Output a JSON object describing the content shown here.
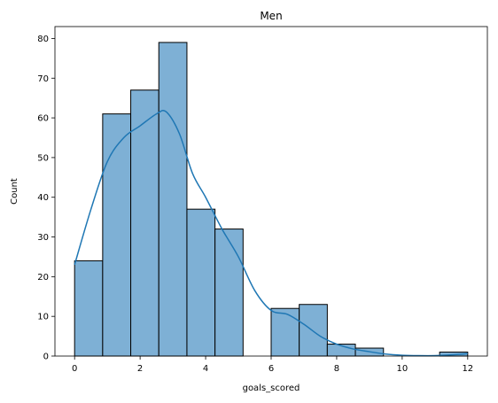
{
  "chart_data": {
    "type": "bar",
    "subtype": "histogram",
    "title": "Men",
    "xlabel": "goals_scored",
    "ylabel": "Count",
    "xlim": [
      -0.6,
      12.6
    ],
    "ylim": [
      0,
      83
    ],
    "xticks": [
      0,
      2,
      4,
      6,
      8,
      10,
      12
    ],
    "yticks": [
      0,
      10,
      20,
      30,
      40,
      50,
      60,
      70,
      80
    ],
    "bins": [
      {
        "start": 0.0,
        "end": 0.857,
        "count": 24
      },
      {
        "start": 0.857,
        "end": 1.714,
        "count": 61
      },
      {
        "start": 1.714,
        "end": 2.571,
        "count": 67
      },
      {
        "start": 2.571,
        "end": 3.429,
        "count": 79
      },
      {
        "start": 3.429,
        "end": 4.286,
        "count": 37
      },
      {
        "start": 4.286,
        "end": 5.143,
        "count": 32
      },
      {
        "start": 5.143,
        "end": 6.0,
        "count": 0
      },
      {
        "start": 6.0,
        "end": 6.857,
        "count": 12
      },
      {
        "start": 6.857,
        "end": 7.714,
        "count": 13
      },
      {
        "start": 7.714,
        "end": 8.571,
        "count": 3
      },
      {
        "start": 8.571,
        "end": 9.429,
        "count": 2
      },
      {
        "start": 9.429,
        "end": 10.286,
        "count": 0
      },
      {
        "start": 10.286,
        "end": 11.143,
        "count": 0
      },
      {
        "start": 11.143,
        "end": 12.0,
        "count": 1
      }
    ],
    "kde": {
      "x": [
        0,
        0.5,
        1.0,
        1.5,
        2.0,
        2.5,
        2.8,
        3.2,
        3.6,
        4.0,
        4.5,
        5.0,
        5.5,
        6.0,
        6.5,
        7.0,
        7.5,
        8.0,
        8.5,
        9.0,
        9.5,
        10.0,
        10.5,
        11.0,
        11.5,
        12.0
      ],
      "y": [
        23,
        37,
        49,
        55,
        58,
        61,
        61.5,
        56,
        46,
        40,
        32,
        25,
        16.5,
        11.5,
        10.5,
        8,
        5,
        3,
        1.8,
        1.1,
        0.5,
        0.2,
        0.1,
        0.1,
        0.3,
        0.6
      ]
    },
    "grid": false,
    "colors": {
      "bar_fill": "#7eb0d5",
      "bar_edge": "#000000",
      "kde_line": "#1f77b4"
    }
  }
}
